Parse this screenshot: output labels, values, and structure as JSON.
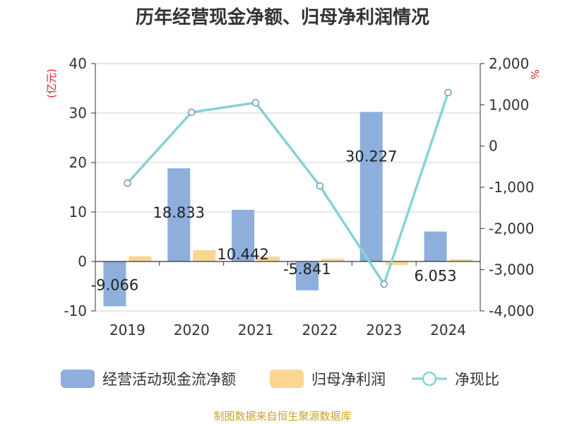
{
  "title": "历年经营现金净额、归母净利润情况",
  "source": "制图数据来自恒生聚源数据库",
  "chart_data": {
    "type": "bar+line",
    "title": "历年经营现金净额、归母净利润情况",
    "categories": [
      "2019",
      "2020",
      "2021",
      "2022",
      "2023",
      "2024"
    ],
    "left_axis": {
      "unit_label": "(亿元)",
      "ylim": [
        -10,
        40
      ],
      "ticks": [
        "40",
        "30",
        "20",
        "10",
        "0",
        "-10"
      ]
    },
    "right_axis": {
      "unit_label": "%",
      "ylim": [
        -4000,
        2000
      ],
      "ticks": [
        "2,000",
        "1,000",
        "0",
        "-1,000",
        "-2,000",
        "-3,000",
        "-4,000"
      ]
    },
    "series": [
      {
        "name": "经营活动现金流净额",
        "type": "bar",
        "axis": "left",
        "color": "#8eaedb",
        "values": [
          -9.066,
          18.833,
          10.442,
          -5.841,
          30.227,
          6.053
        ],
        "labels": [
          "-9.066",
          "18.833",
          "10.442",
          "-5.841",
          "30.227",
          "6.053"
        ]
      },
      {
        "name": "归母净利润",
        "type": "bar",
        "axis": "left",
        "color": "#fcd690",
        "values": [
          1.05,
          2.3,
          1.0,
          0.55,
          -0.75,
          0.45
        ]
      },
      {
        "name": "净现比",
        "type": "line",
        "axis": "right",
        "color": "#86d2d6",
        "values": [
          -900,
          820,
          1050,
          -970,
          -3350,
          1300
        ]
      }
    ],
    "legend": {
      "position": "bottom"
    }
  }
}
